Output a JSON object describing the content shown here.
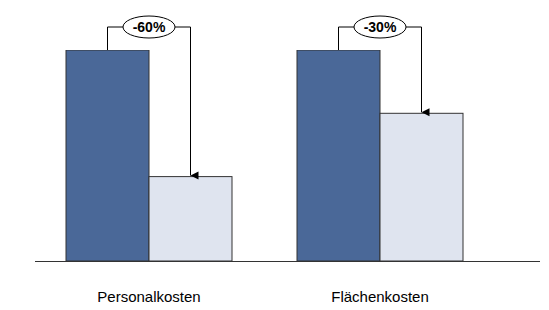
{
  "chart_data": {
    "type": "bar",
    "categories": [
      "Personalkosten",
      "Flächenkosten"
    ],
    "series": [
      {
        "color": "#4a6898",
        "values": [
          100,
          100
        ]
      },
      {
        "color": "#dfe4ef",
        "values": [
          40,
          70
        ]
      }
    ],
    "annotations": [
      "-60%",
      "-30%"
    ],
    "ylim": [
      0,
      100
    ],
    "tick_labels": "x",
    "grid": false
  }
}
